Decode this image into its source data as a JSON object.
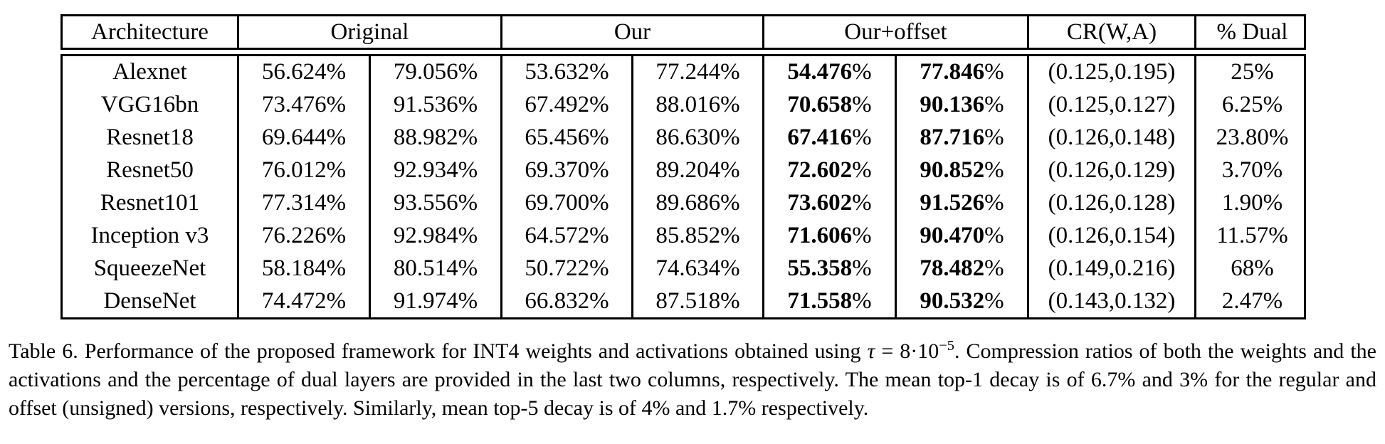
{
  "colors": {
    "text": "#000000",
    "background": "#ffffff",
    "border": "#000000"
  },
  "table": {
    "title": "Table 6",
    "headers": [
      {
        "key": "architecture",
        "label": "Architecture",
        "span": 1
      },
      {
        "key": "original",
        "label": "Original",
        "span": 2
      },
      {
        "key": "our",
        "label": "Our",
        "span": 2
      },
      {
        "key": "our-offset",
        "label": "Our+offset",
        "span": 2
      },
      {
        "key": "cr",
        "label": "CR(W,A)",
        "span": 1
      },
      {
        "key": "dual",
        "label": "% Dual",
        "span": 1
      }
    ],
    "column_keys": [
      "architecture",
      "original-top1",
      "original-top5",
      "our-top1",
      "our-top5",
      "offset-top1",
      "offset-top5",
      "cr",
      "dual"
    ],
    "bold_columns": [
      5,
      6
    ],
    "rows": [
      [
        "Alexnet",
        "56.624%",
        "79.056%",
        "53.632%",
        "77.244%",
        "54.476%",
        "77.846%",
        "(0.125,0.195)",
        "25%"
      ],
      [
        "VGG16bn",
        "73.476%",
        "91.536%",
        "67.492%",
        "88.016%",
        "70.658%",
        "90.136%",
        "(0.125,0.127)",
        "6.25%"
      ],
      [
        "Resnet18",
        "69.644%",
        "88.982%",
        "65.456%",
        "86.630%",
        "67.416%",
        "87.716%",
        "(0.126,0.148)",
        "23.80%"
      ],
      [
        "Resnet50",
        "76.012%",
        "92.934%",
        "69.370%",
        "89.204%",
        "72.602%",
        "90.852%",
        "(0.126,0.129)",
        "3.70%"
      ],
      [
        "Resnet101",
        "77.314%",
        "93.556%",
        "69.700%",
        "89.686%",
        "73.602%",
        "91.526%",
        "(0.126,0.128)",
        "1.90%"
      ],
      [
        "Inception v3",
        "76.226%",
        "92.984%",
        "64.572%",
        "85.852%",
        "71.606%",
        "90.470%",
        "(0.126,0.154)",
        "11.57%"
      ],
      [
        "SqueezeNet",
        "58.184%",
        "80.514%",
        "50.722%",
        "74.634%",
        "55.358%",
        "78.482%",
        "(0.149,0.216)",
        "68%"
      ],
      [
        "DenseNet",
        "74.472%",
        "91.974%",
        "66.832%",
        "87.518%",
        "71.558%",
        "90.532%",
        "(0.143,0.132)",
        "2.47%"
      ]
    ]
  },
  "caption": {
    "part1": "Table 6. Performance of the proposed framework for INT4 weights and activations obtained using ",
    "tau_sym": "τ",
    "tau_rest": " = 8·10",
    "tau_exp": "−5",
    "part2": ". Compression ratios of both the weights and the activations and the percentage of dual layers are provided in the last two columns, respectively. The mean top-1 decay is of 6.7% and 3% for the regular and offset (unsigned) versions, respectively. Similarly, mean top-5 decay is of 4% and 1.7% respectively."
  }
}
